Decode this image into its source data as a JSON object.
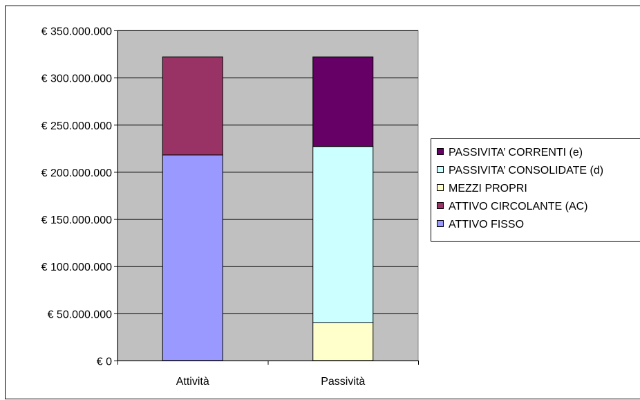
{
  "chart_data": {
    "type": "bar",
    "stacked": true,
    "categories": [
      "Attività",
      "Passività"
    ],
    "series": [
      {
        "name": "ATTIVO FISSO",
        "color": "#9999FF",
        "values": [
          218000000,
          0
        ]
      },
      {
        "name": "ATTIVO CIRCOLANTE (AC)",
        "color": "#993366",
        "values": [
          104000000,
          0
        ]
      },
      {
        "name": "MEZZI PROPRI",
        "color": "#FFFFCC",
        "values": [
          0,
          40000000
        ]
      },
      {
        "name": "PASSIVITA’ CONSOLIDATE (d)",
        "color": "#CCFFFF",
        "values": [
          0,
          187000000
        ]
      },
      {
        "name": "PASSIVITA’ CORRENTI (e)",
        "color": "#660066",
        "values": [
          0,
          95000000
        ]
      }
    ],
    "ylim": [
      0,
      350000000
    ],
    "yticks": [
      0,
      50000000,
      100000000,
      150000000,
      200000000,
      250000000,
      300000000,
      350000000
    ],
    "ytick_labels": [
      "€ 0",
      "€ 50.000.000",
      "€ 100.000.000",
      "€ 150.000.000",
      "€ 200.000.000",
      "€ 250.000.000",
      "€ 300.000.000",
      "€ 350.000.000"
    ],
    "legend_order": [
      "PASSIVITA’ CORRENTI (e)",
      "PASSIVITA’ CONSOLIDATE (d)",
      "MEZZI PROPRI",
      "ATTIVO CIRCOLANTE (AC)",
      "ATTIVO FISSO"
    ],
    "legend_position": "right",
    "grid": true,
    "plot_background": "#C0C0C0"
  }
}
